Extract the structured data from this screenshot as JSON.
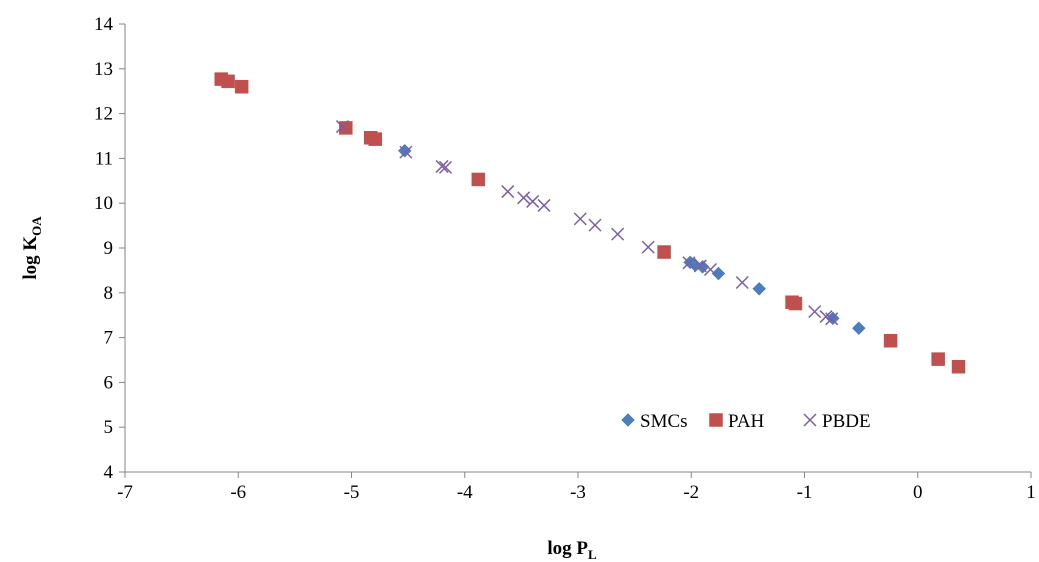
{
  "chart_data": {
    "type": "scatter",
    "xlabel": {
      "main": "log P",
      "sub": "L"
    },
    "ylabel": {
      "main": "log K",
      "sub": "OA"
    },
    "xlim": [
      -7,
      1
    ],
    "ylim": [
      4,
      14
    ],
    "xticks": [
      -7,
      -6,
      -5,
      -4,
      -3,
      -2,
      -1,
      0,
      1
    ],
    "yticks": [
      4,
      5,
      6,
      7,
      8,
      9,
      10,
      11,
      12,
      13,
      14
    ],
    "grid": false,
    "legend_position": "bottom-right",
    "series": [
      {
        "name": "SMCs",
        "marker": "diamond",
        "color": "#4a7ebf",
        "points": [
          [
            -4.53,
            11.17
          ],
          [
            -2.01,
            8.68
          ],
          [
            -1.97,
            8.63
          ],
          [
            -1.9,
            8.58
          ],
          [
            -1.76,
            8.43
          ],
          [
            -1.4,
            8.09
          ],
          [
            -0.75,
            7.43
          ],
          [
            -0.52,
            7.21
          ]
        ]
      },
      {
        "name": "PAH",
        "marker": "square",
        "color": "#c0504d",
        "points": [
          [
            -6.15,
            12.77
          ],
          [
            -6.09,
            12.72
          ],
          [
            -5.97,
            12.6
          ],
          [
            -5.05,
            11.68
          ],
          [
            -4.83,
            11.46
          ],
          [
            -4.79,
            11.43
          ],
          [
            -3.88,
            10.53
          ],
          [
            -2.24,
            8.91
          ],
          [
            -1.11,
            7.79
          ],
          [
            -1.08,
            7.76
          ],
          [
            -0.24,
            6.93
          ],
          [
            0.18,
            6.52
          ],
          [
            0.36,
            6.35
          ]
        ]
      },
      {
        "name": "PBDE",
        "marker": "x",
        "color": "#7b5ea7",
        "points": [
          [
            -5.08,
            11.71
          ],
          [
            -4.52,
            11.14
          ],
          [
            -4.2,
            10.82
          ],
          [
            -4.17,
            10.8
          ],
          [
            -3.62,
            10.26
          ],
          [
            -3.48,
            10.12
          ],
          [
            -3.4,
            10.04
          ],
          [
            -3.3,
            9.95
          ],
          [
            -2.98,
            9.65
          ],
          [
            -2.85,
            9.51
          ],
          [
            -2.65,
            9.31
          ],
          [
            -2.38,
            9.02
          ],
          [
            -2.02,
            8.67
          ],
          [
            -1.92,
            8.6
          ],
          [
            -1.83,
            8.52
          ],
          [
            -1.55,
            8.23
          ],
          [
            -0.91,
            7.58
          ],
          [
            -0.81,
            7.47
          ],
          [
            -0.76,
            7.42
          ]
        ]
      }
    ]
  }
}
